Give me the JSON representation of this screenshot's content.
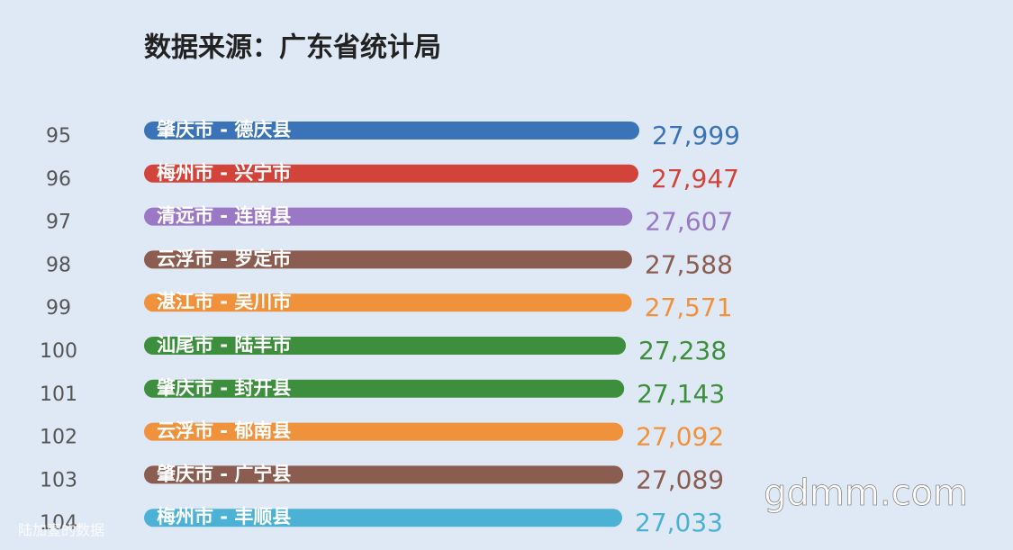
{
  "chart_data": {
    "type": "bar",
    "orientation": "horizontal",
    "title": "数据来源：广东省统计局",
    "ranks": [
      95,
      96,
      97,
      98,
      99,
      100,
      101,
      102,
      103,
      104
    ],
    "categories": [
      "肇庆市 - 德庆县",
      "梅州市 - 兴宁市",
      "清远市 - 连南县",
      "云浮市 - 罗定市",
      "湛江市 - 吴川市",
      "汕尾市 - 陆丰市",
      "肇庆市 - 封开县",
      "云浮市 - 郁南县",
      "肇庆市 - 广宁县",
      "梅州市 - 丰顺县"
    ],
    "values": [
      27999,
      27947,
      27607,
      27588,
      27571,
      27238,
      27143,
      27092,
      27089,
      27033
    ],
    "value_labels": [
      "27,999",
      "27,947",
      "27,607",
      "27,588",
      "27,571",
      "27,238",
      "27,143",
      "27,092",
      "27,089",
      "27,033"
    ],
    "colors": [
      "#3b73b9",
      "#d2433a",
      "#9b78c6",
      "#8b5c50",
      "#f0913c",
      "#3d8f3d",
      "#3d8f3d",
      "#f0913c",
      "#8b5c50",
      "#4bb2d6"
    ],
    "annotations": [
      "陆加壹的数据",
      "gdmm.com"
    ]
  }
}
